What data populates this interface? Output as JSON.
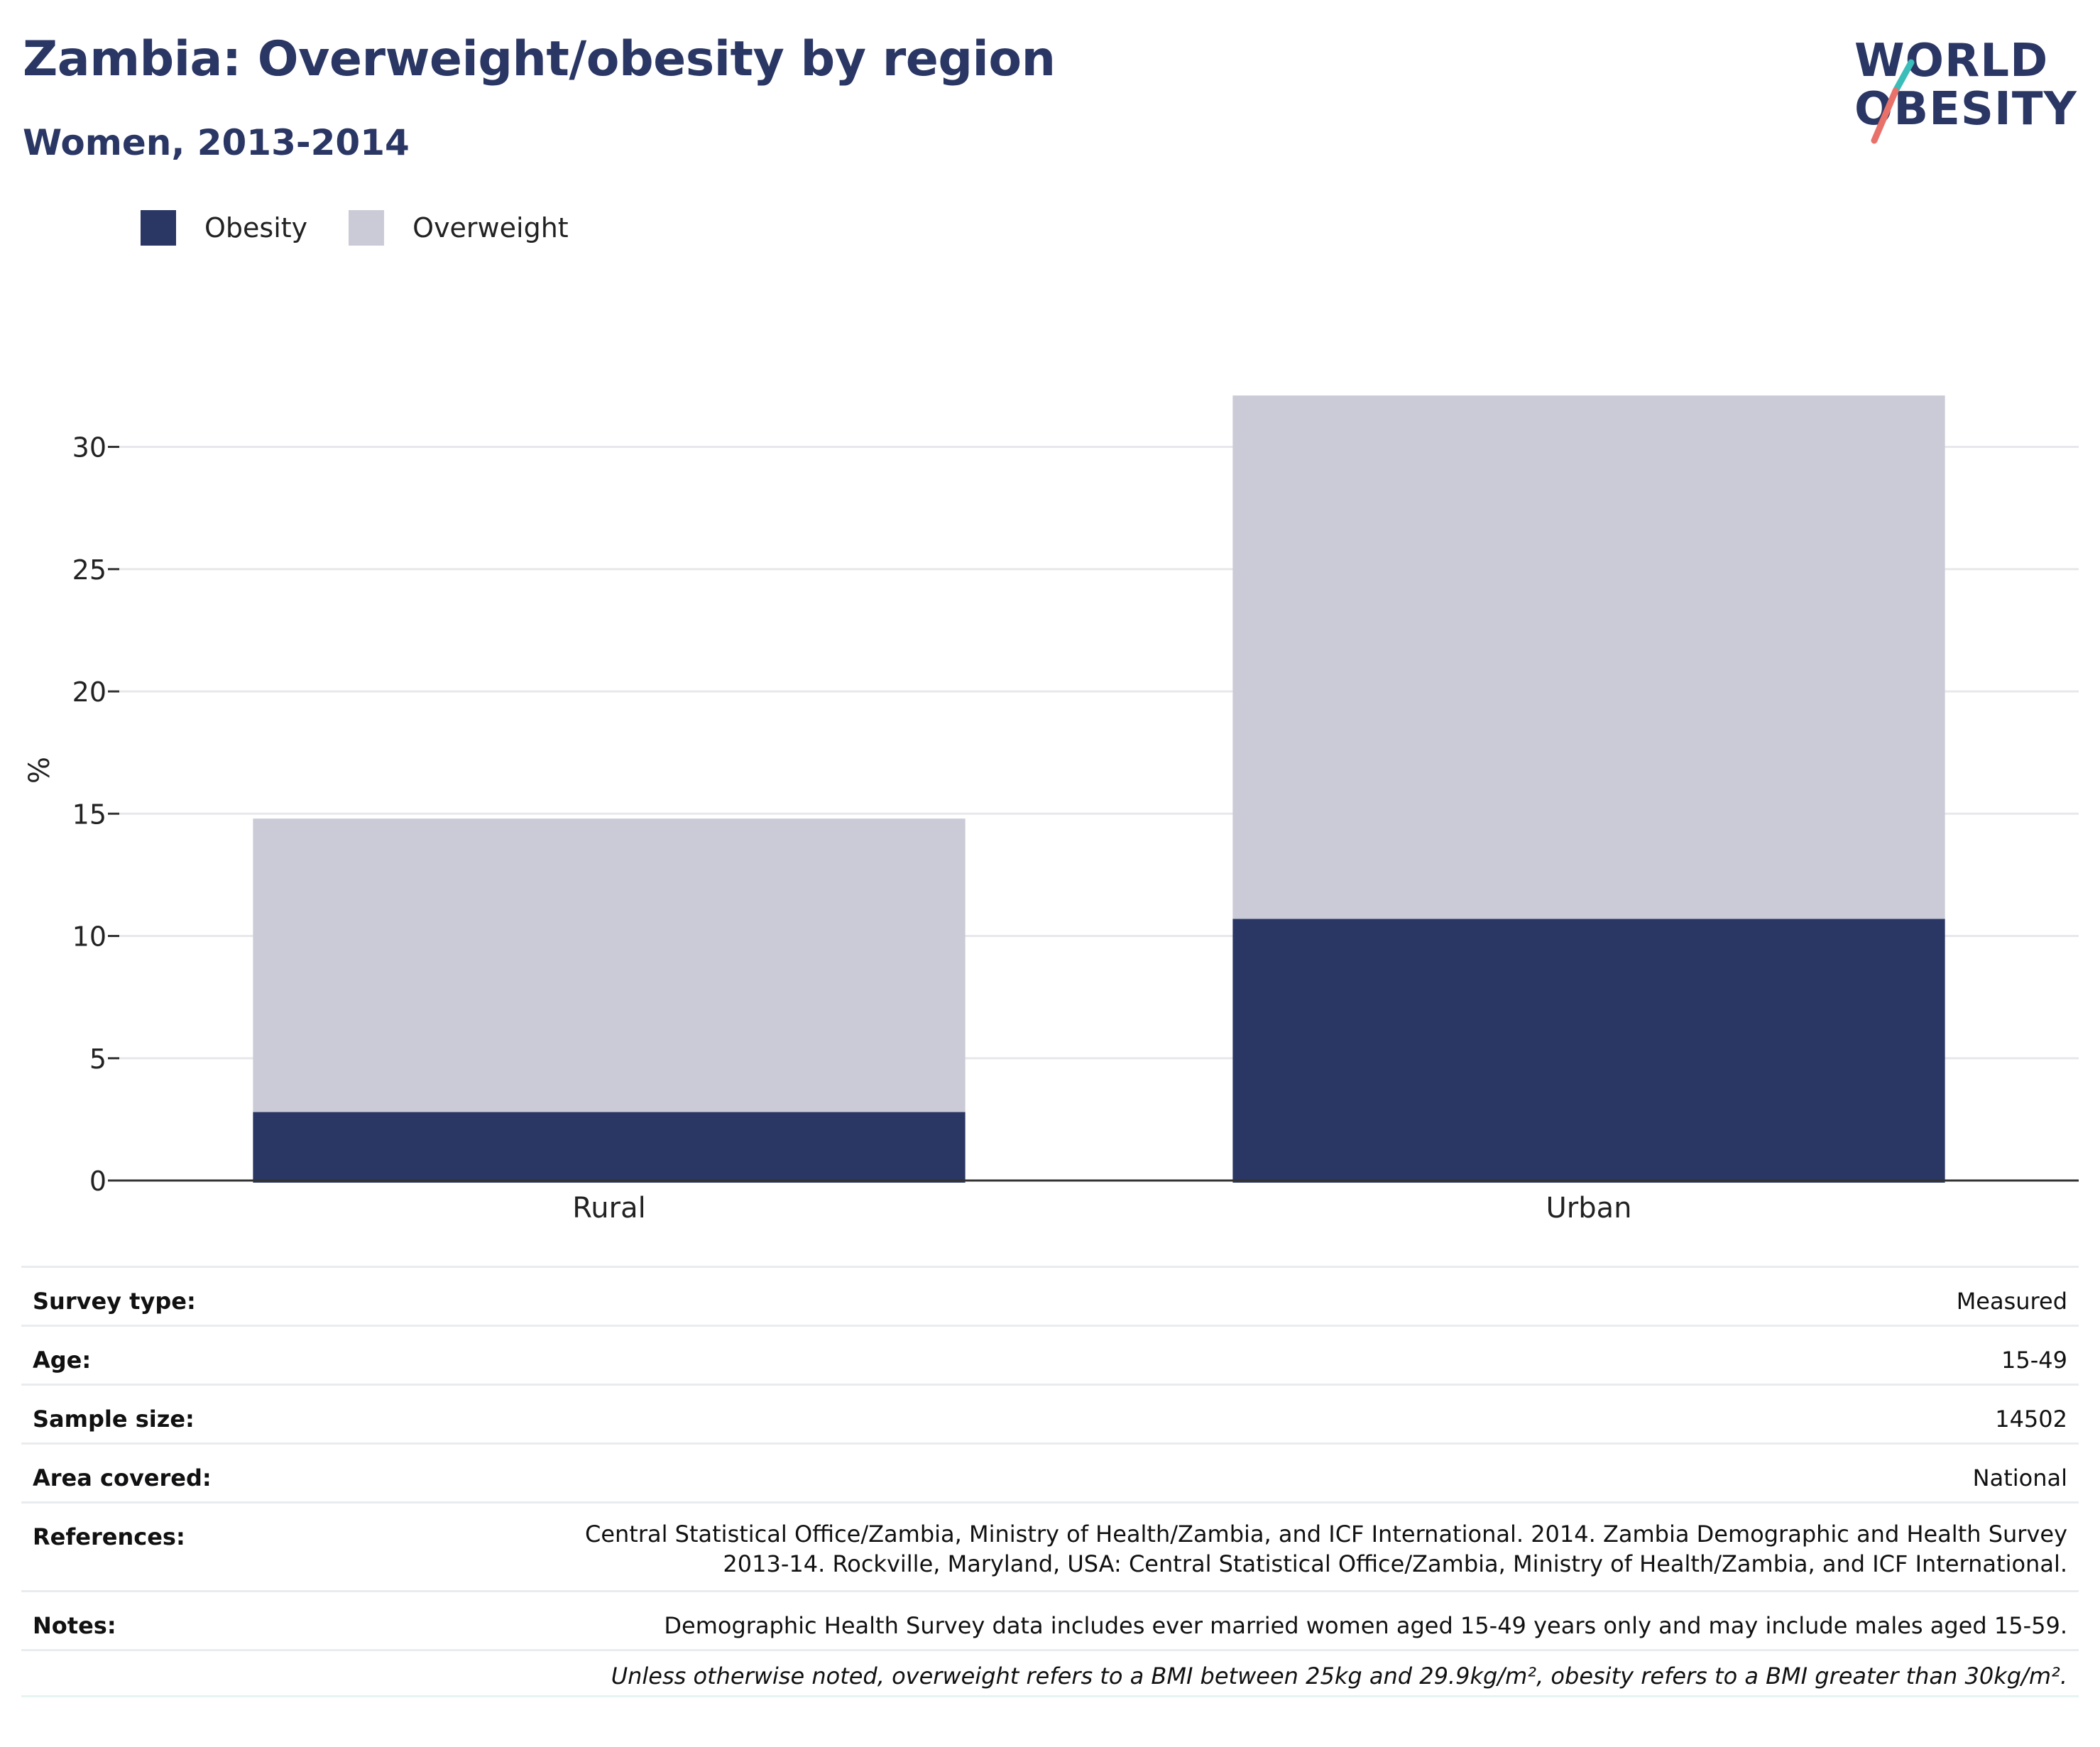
{
  "header": {
    "title": "Zambia: Overweight/obesity by region",
    "subtitle": "Women, 2013-2014",
    "logo_line1": "WORLD",
    "logo_line2": "OBESITY"
  },
  "legend": [
    {
      "label": "Obesity",
      "color": "#2a3664"
    },
    {
      "label": "Overweight",
      "color": "#cacbd6"
    }
  ],
  "chart_data": {
    "type": "bar",
    "stacked": true,
    "categories": [
      "Rural",
      "Urban"
    ],
    "series": [
      {
        "name": "Obesity",
        "values": [
          2.8,
          10.7
        ],
        "color": "#2a3664"
      },
      {
        "name": "Overweight",
        "values": [
          12.0,
          21.4
        ],
        "color": "#cacbd6"
      }
    ],
    "ylabel": "%",
    "ylim": [
      0,
      32.5
    ],
    "yticks": [
      0,
      5,
      10,
      15,
      20,
      25,
      30
    ],
    "grid": true,
    "legend_position": "top-left"
  },
  "info": {
    "survey_type_label": "Survey type:",
    "survey_type_value": "Measured",
    "age_label": "Age:",
    "age_value": "15-49",
    "sample_size_label": "Sample size:",
    "sample_size_value": "14502",
    "area_label": "Area covered:",
    "area_value": "National",
    "references_label": "References:",
    "references_value": "Central Statistical Office/Zambia, Ministry of Health/Zambia, and ICF International. 2014. Zambia Demographic and Health Survey 2013-14. Rockville, Maryland, USA: Central Statistical Office/Zambia, Ministry of Health/Zambia, and ICF International.",
    "notes_label": "Notes:",
    "notes_value": "Demographic Health Survey data includes ever married women aged 15-49 years only and may include males aged 15-59.",
    "footnote": "Unless otherwise noted, overweight refers to a BMI between 25kg and 29.9kg/m², obesity refers to a BMI greater than 30kg/m²."
  }
}
